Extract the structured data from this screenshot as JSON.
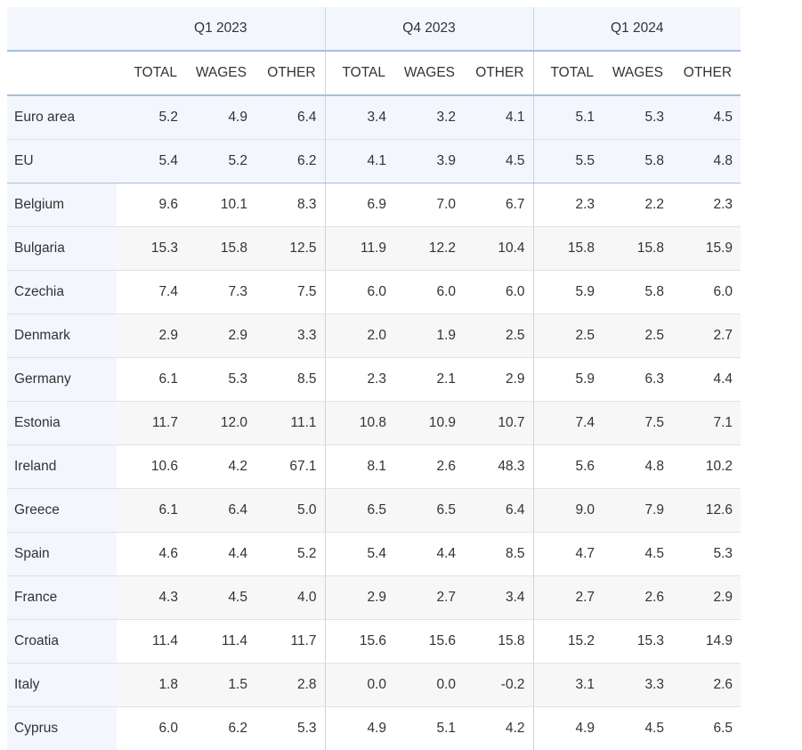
{
  "chart_data": {
    "type": "table",
    "groups": [
      "Q1 2023",
      "Q4 2023",
      "Q1 2024"
    ],
    "subcolumns": [
      "TOTAL",
      "WAGES",
      "OTHER"
    ],
    "rows": [
      {
        "country": "Euro area",
        "values": [
          "5.2",
          "4.9",
          "6.4",
          "3.4",
          "3.2",
          "4.1",
          "5.1",
          "5.3",
          "4.5"
        ]
      },
      {
        "country": "EU",
        "values": [
          "5.4",
          "5.2",
          "6.2",
          "4.1",
          "3.9",
          "4.5",
          "5.5",
          "5.8",
          "4.8"
        ]
      },
      {
        "country": "Belgium",
        "values": [
          "9.6",
          "10.1",
          "8.3",
          "6.9",
          "7.0",
          "6.7",
          "2.3",
          "2.2",
          "2.3"
        ]
      },
      {
        "country": "Bulgaria",
        "values": [
          "15.3",
          "15.8",
          "12.5",
          "11.9",
          "12.2",
          "10.4",
          "15.8",
          "15.8",
          "15.9"
        ]
      },
      {
        "country": "Czechia",
        "values": [
          "7.4",
          "7.3",
          "7.5",
          "6.0",
          "6.0",
          "6.0",
          "5.9",
          "5.8",
          "6.0"
        ]
      },
      {
        "country": "Denmark",
        "values": [
          "2.9",
          "2.9",
          "3.3",
          "2.0",
          "1.9",
          "2.5",
          "2.5",
          "2.5",
          "2.7"
        ]
      },
      {
        "country": "Germany",
        "values": [
          "6.1",
          "5.3",
          "8.5",
          "2.3",
          "2.1",
          "2.9",
          "5.9",
          "6.3",
          "4.4"
        ]
      },
      {
        "country": "Estonia",
        "values": [
          "11.7",
          "12.0",
          "11.1",
          "10.8",
          "10.9",
          "10.7",
          "7.4",
          "7.5",
          "7.1"
        ]
      },
      {
        "country": "Ireland",
        "values": [
          "10.6",
          "4.2",
          "67.1",
          "8.1",
          "2.6",
          "48.3",
          "5.6",
          "4.8",
          "10.2"
        ]
      },
      {
        "country": "Greece",
        "values": [
          "6.1",
          "6.4",
          "5.0",
          "6.5",
          "6.5",
          "6.4",
          "9.0",
          "7.9",
          "12.6"
        ]
      },
      {
        "country": "Spain",
        "values": [
          "4.6",
          "4.4",
          "5.2",
          "5.4",
          "4.4",
          "8.5",
          "4.7",
          "4.5",
          "5.3"
        ]
      },
      {
        "country": "France",
        "values": [
          "4.3",
          "4.5",
          "4.0",
          "2.9",
          "2.7",
          "3.4",
          "2.7",
          "2.6",
          "2.9"
        ]
      },
      {
        "country": "Croatia",
        "values": [
          "11.4",
          "11.4",
          "11.7",
          "15.6",
          "15.6",
          "15.8",
          "15.2",
          "15.3",
          "14.9"
        ]
      },
      {
        "country": "Italy",
        "values": [
          "1.8",
          "1.5",
          "2.8",
          "0.0",
          "0.0",
          "-0.2",
          "3.1",
          "3.3",
          "2.6"
        ]
      },
      {
        "country": "Cyprus",
        "values": [
          "6.0",
          "6.2",
          "5.3",
          "4.9",
          "5.1",
          "4.2",
          "4.9",
          "4.5",
          "6.5"
        ]
      }
    ],
    "colors": {
      "header_bg": "#f3f6fd",
      "header_rule": "#a8bde0",
      "stripe_bg": "#f7f7f7",
      "text": "#333333"
    }
  }
}
